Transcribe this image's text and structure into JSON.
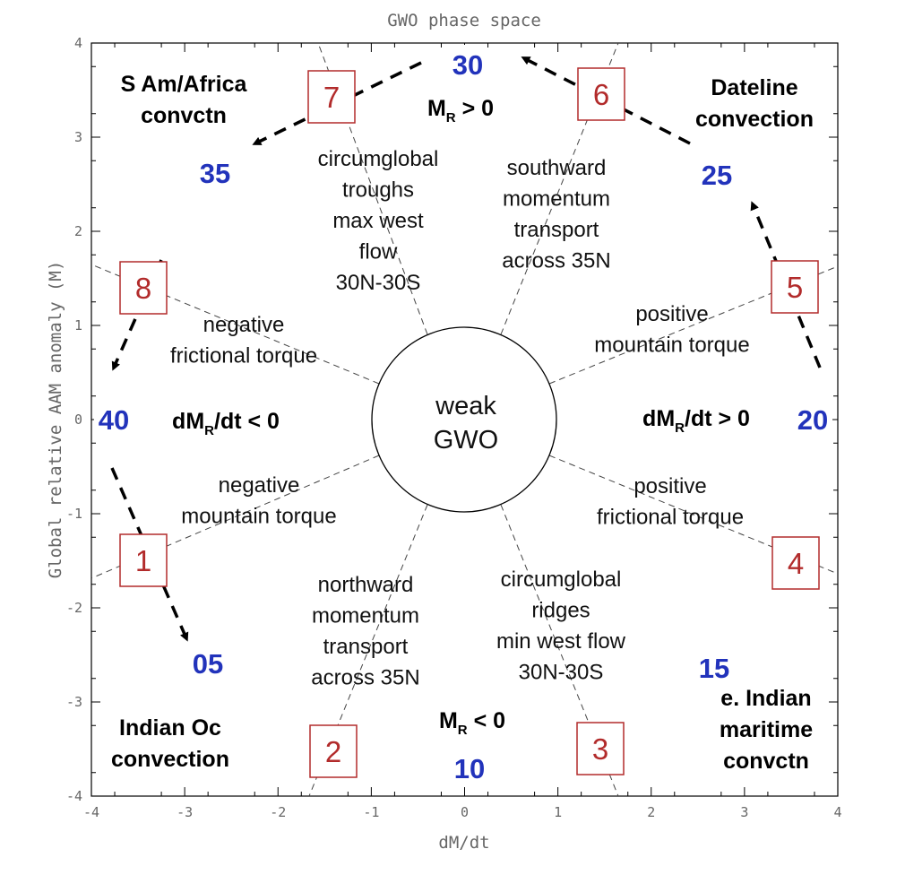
{
  "title": "GWO phase space",
  "axes": {
    "xlabel": "dM/dt",
    "ylabel": "Global relative AAM anomaly (M)",
    "xlim": [
      -4,
      4
    ],
    "ylim": [
      -4,
      4
    ],
    "xticks": [
      -4,
      -3,
      -2,
      -1,
      0,
      1,
      2,
      3,
      4
    ],
    "yticks": [
      -4,
      -3,
      -2,
      -1,
      0,
      1,
      2,
      3,
      4
    ]
  },
  "center_label": [
    "weak",
    "GWO"
  ],
  "phases": [
    "1",
    "2",
    "3",
    "4",
    "5",
    "6",
    "7",
    "8"
  ],
  "days": [
    "05",
    "10",
    "15",
    "20",
    "25",
    "30",
    "35",
    "40"
  ],
  "regions": [
    [
      "S Am/Africa",
      "convctn"
    ],
    [
      "Dateline",
      "convection"
    ],
    [
      "e. Indian",
      "maritime",
      "convctn"
    ],
    [
      "Indian Oc",
      "convection"
    ]
  ],
  "conditions": [
    {
      "lead": "M",
      "sub": "R",
      "tail": " > 0"
    },
    {
      "lead": "M",
      "sub": "R",
      "tail": " < 0"
    },
    {
      "lead": "dM",
      "sub": "R",
      "tail": "/dt < 0"
    },
    {
      "lead": "dM",
      "sub": "R",
      "tail": "/dt > 0"
    }
  ],
  "processes": [
    [
      "circumglobal",
      "troughs",
      "max west",
      "flow",
      "30N-30S"
    ],
    [
      "southward",
      "momentum",
      "transport",
      "across 35N"
    ],
    [
      "negative",
      "frictional torque"
    ],
    [
      "positive",
      "mountain torque"
    ],
    [
      "negative",
      "mountain torque"
    ],
    [
      "positive",
      "frictional torque"
    ],
    [
      "northward",
      "momentum",
      "transport",
      "across 35N"
    ],
    [
      "circumglobal",
      "ridges",
      "min west flow",
      "30N-30S"
    ]
  ]
}
